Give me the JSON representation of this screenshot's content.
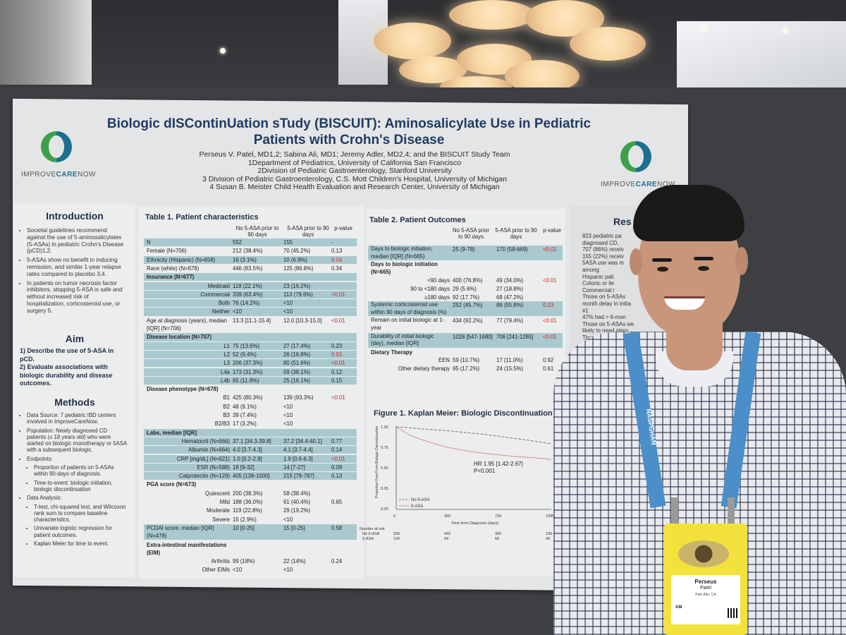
{
  "poster": {
    "title": "Biologic dISContinUation sTudy (BISCUIT): Aminosalicylate Use in Pediatric Patients with Crohn's Disease",
    "authors": "Perseus V. Patel, MD1,2; Sabina Ali, MD1; Jeremy Adler, MD2,4; and the BISCUIT Study Team",
    "affiliations": [
      "1Department of Pediatrics, University of California San Francisco",
      "2Division of Pediatric Gastroenterology, Stanford University",
      "3 Division of Pediatric Gastroenterology, C.S. Mott Children's Hospital, University of Michigan",
      "4 Susan B. Meister Child Health Evaluation and Research Center, University of Michigan"
    ],
    "logo_text_left": "IMPROVE",
    "logo_text_mid": "CARE",
    "logo_text_right": "NOW"
  },
  "intro": {
    "heading": "Introduction",
    "bullets": [
      "Societal guidelines recommend against the use of 5-aminosalicylates (5-ASAs) in pediatric Crohn's Disease (pCD)1,2.",
      "5-ASAs show no benefit in inducing remission, and similar 1-year relapse rates compared to placebo 3,4.",
      "In patients on tumor necrosis factor inhibitors, stopping 5-ASA is safe and without increased risk of hospitalization, corticosteroid use, or surgery 5."
    ]
  },
  "aim": {
    "heading": "Aim",
    "items": [
      "1) Describe the use of 5-ASA in pCD.",
      "2) Evaluate associations with biologic durability and disease outcomes."
    ]
  },
  "methods": {
    "heading": "Methods",
    "items": [
      "Data Source: 7 pediatric IBD centers involved in ImproveCareNow.",
      "Population: Newly diagnosed CD patients (≤ 18 years old) who were started on biologic monotherapy or 5ASA with a subsequent biologic.",
      "Endpoints:",
      "Proportion of patients on 5-ASAs within 90-days of diagnosis.",
      "Time-to-event: biologic initiation, biologic discontinuation",
      "Data Analysis:",
      "T-test, chi-squared test, and Wilcoxon rank sum to compare baseline characteristics.",
      "Univariate logistic regression for patient outcomes.",
      "Kaplan Meier for time to event."
    ]
  },
  "table1": {
    "title": "Table 1. Patient characteristics",
    "col1": "No 5-ASA prior to 90 days",
    "col2": "5-ASA prior to 90 days",
    "col3": "p-value",
    "rows": [
      {
        "label": "N",
        "a": "552",
        "b": "155",
        "p": "-",
        "hl": true
      },
      {
        "label": "Female (N=706)",
        "a": "212 (38.4%)",
        "b": "70 (45.2%)",
        "p": "0.13",
        "hl": false
      },
      {
        "label": "Ethnicity (Hispanic) (N=658)",
        "a": "16 (3.1%)",
        "b": "10 (6.9%)",
        "p": "0.04",
        "hl": true,
        "red": true
      },
      {
        "label": "Race (white) (N=678)",
        "a": "446 (83.5%)",
        "b": "125 (86.8%)",
        "p": "0.34",
        "hl": false
      },
      {
        "label": "Insurance (N=677)",
        "a": "",
        "b": "",
        "p": "",
        "hl": true
      },
      {
        "label": "Medicaid",
        "a": "118 (22.1%)",
        "b": "23 (16.2%)",
        "p": "",
        "hl": true,
        "sub": true
      },
      {
        "label": "Commercial",
        "a": "339 (63.4%)",
        "b": "113 (79.6%)",
        "p": "<0.01",
        "hl": true,
        "sub": true,
        "red": true
      },
      {
        "label": "Both",
        "a": "76 (14.2%)",
        "b": "<10",
        "p": "",
        "hl": true,
        "sub": true
      },
      {
        "label": "Neither",
        "a": "<10",
        "b": "<10",
        "p": "",
        "hl": true,
        "sub": true
      },
      {
        "label": "Age at diagnosis (years), median [IQR] (N=706)",
        "a": "13.3 [11.1-15.4]",
        "b": "12.0 [10.3-15.0]",
        "p": "<0.01",
        "hl": false,
        "red": true
      },
      {
        "label": "Disease location (N=707)",
        "a": "",
        "b": "",
        "p": "",
        "hl": true
      },
      {
        "label": "L1",
        "a": "75 (13.6%)",
        "b": "27 (17.4%)",
        "p": "0.23",
        "hl": true,
        "sub": true
      },
      {
        "label": "L2",
        "a": "52 (9.4%)",
        "b": "26 (16.8%)",
        "p": "0.01",
        "hl": true,
        "sub": true,
        "red": true
      },
      {
        "label": "L3",
        "a": "206 (37.3%)",
        "b": "80 (51.6%)",
        "p": "<0.01",
        "hl": true,
        "sub": true,
        "red": true
      },
      {
        "label": "L4a",
        "a": "173 (31.3%)",
        "b": "59 (38.1%)",
        "p": "0.12",
        "hl": true,
        "sub": true
      },
      {
        "label": "L4b",
        "a": "65 (11.8%)",
        "b": "25 (16.1%)",
        "p": "0.15",
        "hl": true,
        "sub": true
      },
      {
        "label": "Disease phenotype (N=678)",
        "a": "",
        "b": "",
        "p": "",
        "hl": false
      },
      {
        "label": "B1",
        "a": "425 (80.3%)",
        "b": "139 (93.3%)",
        "p": "<0.01",
        "hl": false,
        "sub": true,
        "red": true
      },
      {
        "label": "B2",
        "a": "48 (9.1%)",
        "b": "<10",
        "p": "",
        "hl": false,
        "sub": true
      },
      {
        "label": "B3",
        "a": "39 (7.4%)",
        "b": "<10",
        "p": "",
        "hl": false,
        "sub": true
      },
      {
        "label": "B2/B3",
        "a": "17 (3.2%)",
        "b": "<10",
        "p": "",
        "hl": false,
        "sub": true
      },
      {
        "label": "Labs, median [IQR]",
        "a": "",
        "b": "",
        "p": "",
        "hl": true
      },
      {
        "label": "Hematocrit (N=666)",
        "a": "37.1 [34.3-39.8]",
        "b": "37.2 [34.4-40.1]",
        "p": "0.77",
        "hl": true,
        "sub": true
      },
      {
        "label": "Albumin (N=664)",
        "a": "4.0 [3.7-4.3]",
        "b": "4.1 [3.7-4.4]",
        "p": "0.14",
        "hl": true,
        "sub": true
      },
      {
        "label": "CRP [mg/dL] (N=621)",
        "a": "1.0 [0.2-2.9]",
        "b": "1.9 [0.6-6.3]",
        "p": "<0.01",
        "hl": true,
        "sub": true,
        "red": true
      },
      {
        "label": "ESR (N=588)",
        "a": "18 [9-32]",
        "b": "14 [7-27]",
        "p": "0.09",
        "hl": true,
        "sub": true
      },
      {
        "label": "Calprotectin (N=129)",
        "a": "405 [138-1000]",
        "b": "215 [79-787]",
        "p": "0.13",
        "hl": true,
        "sub": true
      },
      {
        "label": "PGA score (N=673)",
        "a": "",
        "b": "",
        "p": "",
        "hl": false
      },
      {
        "label": "Quiescent",
        "a": "200 (38.3%)",
        "b": "58 (38.4%)",
        "p": "",
        "hl": false,
        "sub": true
      },
      {
        "label": "Mild",
        "a": "188 (36.0%)",
        "b": "61 (40.4%)",
        "p": "0.65",
        "hl": false,
        "sub": true
      },
      {
        "label": "Moderate",
        "a": "119 (22.8%)",
        "b": "29 (19.2%)",
        "p": "",
        "hl": false,
        "sub": true
      },
      {
        "label": "Severe",
        "a": "15 (2.9%)",
        "b": "<10",
        "p": "",
        "hl": false,
        "sub": true
      },
      {
        "label": "PCDAI score, median [IQR] (N=478)",
        "a": "10 [0-25]",
        "b": "15 [0-25]",
        "p": "0.58",
        "hl": true
      },
      {
        "label": "Extra-intestinal manifestations (EIM)",
        "a": "",
        "b": "",
        "p": "",
        "hl": false
      },
      {
        "label": "Arthritis",
        "a": "99 (18%)",
        "b": "22 (14%)",
        "p": "0.24",
        "hl": false,
        "sub": true
      },
      {
        "label": "Other EIMs",
        "a": "<10",
        "b": "<10",
        "p": "",
        "hl": false,
        "sub": true
      }
    ]
  },
  "table2": {
    "title": "Table 2. Patient Outcomes",
    "col1": "No 5-ASA prior to 90 days",
    "col2": "5-ASA prior to 90 days",
    "col3": "p-value",
    "rows": [
      {
        "label": "Days to biologic initiation, median [IQR] (N=665)",
        "a": "25 (9-78)",
        "b": "170 (58-669)",
        "p": "<0.01",
        "hl": true,
        "red": true
      },
      {
        "label": "Days to biologic initiation (N=665)",
        "a": "",
        "b": "",
        "p": "",
        "hl": false
      },
      {
        "label": "<90 days",
        "a": "400 (76.8%)",
        "b": "49 (34.0%)",
        "p": "<0.01",
        "hl": false,
        "sub": true,
        "red": true
      },
      {
        "label": "90 to <180 days",
        "a": "29 (5.6%)",
        "b": "27 (18.8%)",
        "p": "",
        "hl": false,
        "sub": true
      },
      {
        "label": "≥180 days",
        "a": "92 (17.7%)",
        "b": "68 (47.2%)",
        "p": "",
        "hl": false,
        "sub": true
      },
      {
        "label": "Systemic corticosteroid use within 90 days of diagnosis (%)",
        "a": "252 (45.7%)",
        "b": "86 (55.8%)",
        "p": "0.03",
        "hl": true,
        "red": true
      },
      {
        "label": "Remain on initial biologic at 1-year",
        "a": "434 (92.2%)",
        "b": "77 (79.4%)",
        "p": "<0.01",
        "hl": false,
        "red": true
      },
      {
        "label": "Durability of initial biologic (day), median [IQR]",
        "a": "1028 [547-1680]",
        "b": "706 [241-1285]",
        "p": "<0.01",
        "hl": true,
        "red": true
      },
      {
        "label": "Dietary Therapy",
        "a": "",
        "b": "",
        "p": "",
        "hl": false
      },
      {
        "label": "EEN",
        "a": "59 (10.7%)",
        "b": "17 (11.0%)",
        "p": "0.92",
        "hl": false,
        "sub": true
      },
      {
        "label": "Other dietary therapy",
        "a": "95 (17.2%)",
        "b": "24 (15.5%)",
        "p": "0.61",
        "hl": false,
        "sub": true
      }
    ]
  },
  "figure1": {
    "title": "Figure 1. Kaplan Meier: Biologic Discontinuation",
    "ylabel": "Proportion Free From Biologic Discontinuation",
    "xlabel": "Time from Diagnosis (days)",
    "annotation_hr": "HR 1.95 [1.42-2.67]",
    "annotation_p": "P<0.001",
    "legend_no": "No 5-ASA",
    "legend_yes": "5-ASA",
    "yticks": [
      "1.00",
      "0.75",
      "0.50",
      "0.25",
      "0.00"
    ],
    "xticks": [
      "0",
      "365",
      "730",
      "1095"
    ],
    "at_risk_label": "Number at risk",
    "at_risk_rows": [
      {
        "label": "No 5-ASA",
        "values": [
          "530",
          "442",
          "300",
          "195"
        ]
      },
      {
        "label": "5-ASA",
        "values": [
          "142",
          "94",
          "68",
          "46"
        ]
      }
    ]
  },
  "results": {
    "heading": "Res",
    "lines": [
      "823 pediatric pa",
      "diagnosed CD.",
      "707 (86%) receiv",
      "155 (22%) receiv",
      "5ASA use was m",
      "among",
      "Hispanic pati",
      "Colonic or ile",
      "Commercial i",
      "Those on 5-ASAs",
      "month delay in initia",
      "#1",
      "47% had > 6-mon",
      "Those on 5-ASAs we",
      "likely to need stero",
      "Those on 5",
      "biolo"
    ]
  },
  "badge": {
    "first": "Perseus",
    "last": "Patel",
    "location": "Palo Alto, CA",
    "tag": "AM",
    "lanyard_text": "NASPGHAN"
  },
  "colors": {
    "accent": "#1f3b63",
    "highlight": "#a9c9cf",
    "pvalue_sig": "#c62828",
    "lanyard": "#4a8fc9",
    "badge": "#f2e23b"
  }
}
